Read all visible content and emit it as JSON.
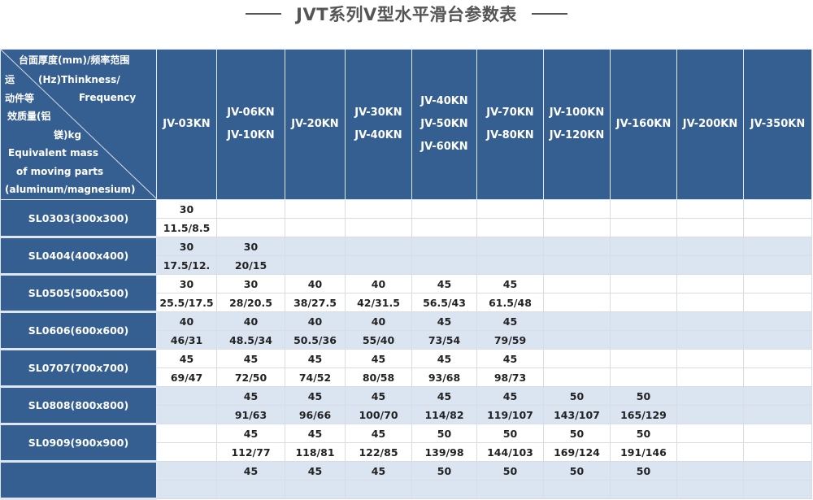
{
  "title": "JVT系列V型水平滑台参数表",
  "corner": {
    "top_line1": "台面厚度(mm)/频率范围",
    "top_line2": "(Hz)Thinkness/",
    "top_line3": "Frequency",
    "left_lines": [
      "运",
      "动件等",
      "效质量(铝",
      "镁)kg",
      "Equivalent mass",
      "of moving parts",
      "(aluminum/magnesium)"
    ]
  },
  "columns": [
    [
      "JV-03KN"
    ],
    [
      "JV-06KN",
      "JV-10KN"
    ],
    [
      "JV-20KN"
    ],
    [
      "JV-30KN",
      "JV-40KN"
    ],
    [
      "JV-40KN",
      "JV-50KN",
      "JV-60KN"
    ],
    [
      "JV-70KN",
      "JV-80KN"
    ],
    [
      "JV-100KN",
      "JV-120KN"
    ],
    [
      "JV-160KN"
    ],
    [
      "JV-200KN"
    ],
    [
      "JV-350KN"
    ]
  ],
  "rows": [
    {
      "label": "SL0303(300x300)",
      "thickness": [
        "30",
        "",
        "",
        "",
        "",
        "",
        "",
        "",
        "",
        ""
      ],
      "mass": [
        "11.5/8.5",
        "",
        "",
        "",
        "",
        "",
        "",
        "",
        "",
        ""
      ]
    },
    {
      "label": "SL0404(400x400)",
      "thickness": [
        "30",
        "30",
        "",
        "",
        "",
        "",
        "",
        "",
        "",
        ""
      ],
      "mass": [
        "17.5/12.",
        "20/15",
        "",
        "",
        "",
        "",
        "",
        "",
        "",
        ""
      ]
    },
    {
      "label": "SL0505(500x500)",
      "thickness": [
        "30",
        "30",
        "40",
        "40",
        "45",
        "45",
        "",
        "",
        "",
        ""
      ],
      "mass": [
        "25.5/17.5",
        "28/20.5",
        "38/27.5",
        "42/31.5",
        "56.5/43",
        "61.5/48",
        "",
        "",
        "",
        ""
      ]
    },
    {
      "label": "SL0606(600x600)",
      "thickness": [
        "40",
        "40",
        "40",
        "40",
        "45",
        "45",
        "",
        "",
        "",
        ""
      ],
      "mass": [
        "46/31",
        "48.5/34",
        "50.5/36",
        "55/40",
        "73/54",
        "79/59",
        "",
        "",
        "",
        ""
      ]
    },
    {
      "label": "SL0707(700x700)",
      "thickness": [
        "45",
        "45",
        "45",
        "45",
        "45",
        "45",
        "",
        "",
        "",
        ""
      ],
      "mass": [
        "69/47",
        "72/50",
        "74/52",
        "80/58",
        "93/68",
        "98/73",
        "",
        "",
        "",
        ""
      ]
    },
    {
      "label": "SL0808(800x800)",
      "thickness": [
        "",
        "45",
        "45",
        "45",
        "45",
        "45",
        "50",
        "50",
        "",
        ""
      ],
      "mass": [
        "",
        "91/63",
        "96/66",
        "100/70",
        "114/82",
        "119/107",
        "143/107",
        "165/129",
        "",
        ""
      ]
    },
    {
      "label": "SL0909(900x900)",
      "thickness": [
        "",
        "45",
        "45",
        "45",
        "50",
        "50",
        "50",
        "50",
        "",
        ""
      ],
      "mass": [
        "",
        "112/77",
        "118/81",
        "122/85",
        "139/98",
        "144/103",
        "169/124",
        "191/146",
        "",
        ""
      ]
    },
    {
      "label": "",
      "thickness": [
        "",
        "45",
        "45",
        "45",
        "50",
        "50",
        "50",
        "50",
        "",
        ""
      ],
      "mass": [
        "",
        "",
        "",
        "",
        "",
        "",
        "",
        "",
        "",
        ""
      ]
    }
  ]
}
